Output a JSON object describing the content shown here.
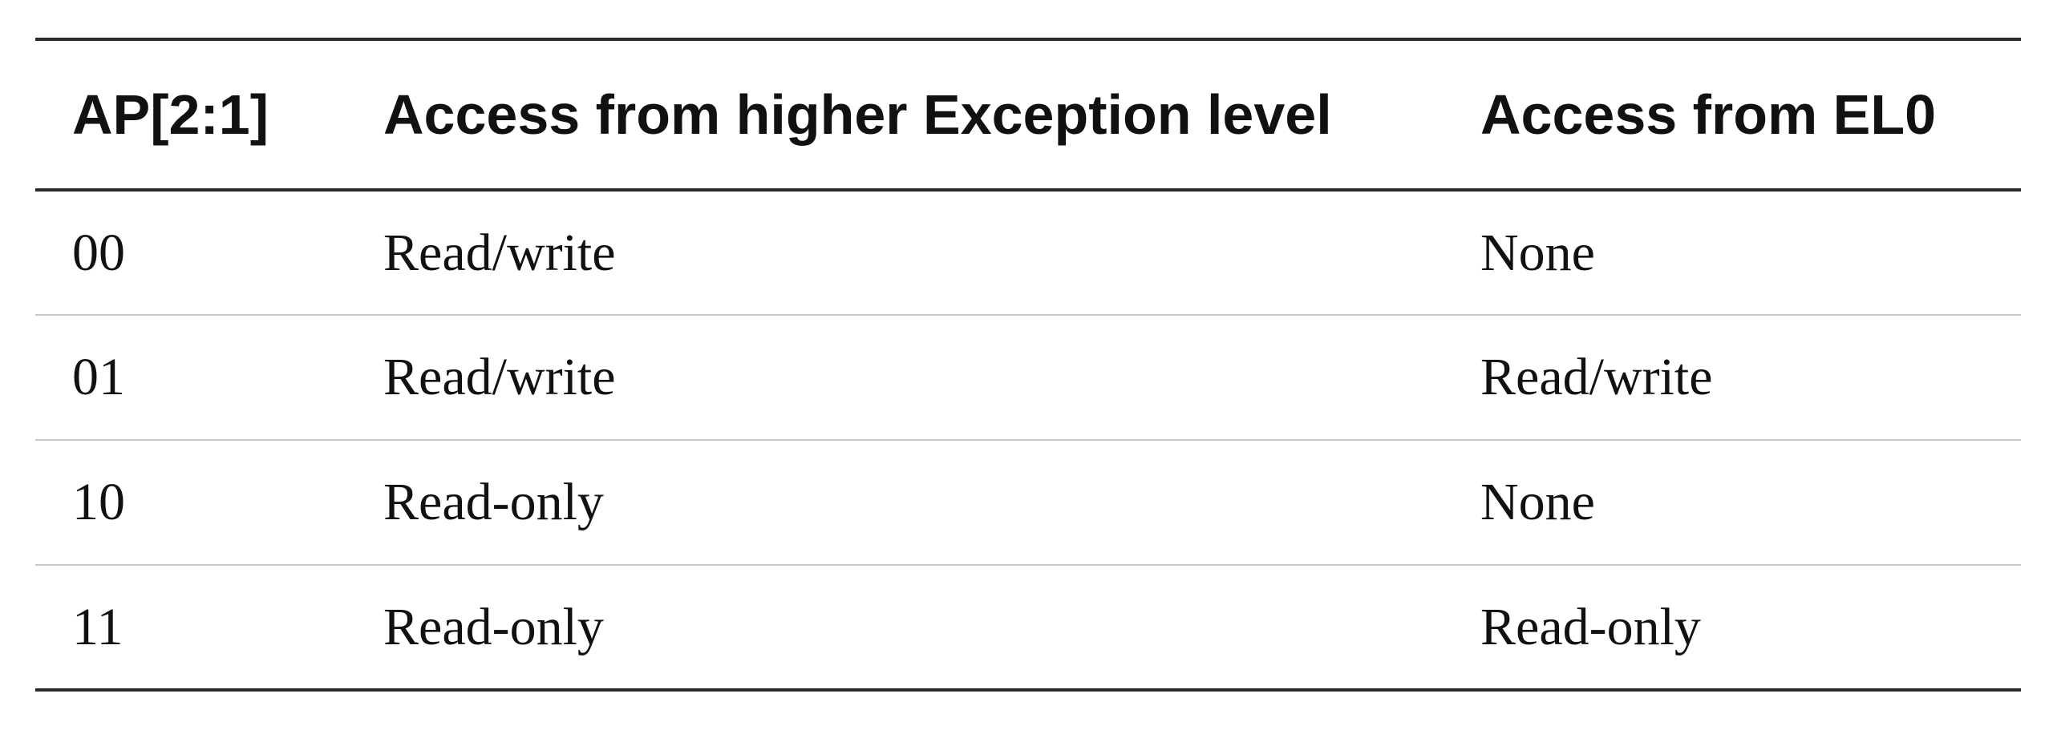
{
  "table": {
    "headers": [
      "AP[2:1]",
      "Access from higher Exception level",
      "Access from EL0"
    ],
    "rows": [
      [
        "00",
        "Read/write",
        "None"
      ],
      [
        "01",
        "Read/write",
        "Read/write"
      ],
      [
        "10",
        "Read-only",
        "None"
      ],
      [
        "11",
        "Read-only",
        "Read-only"
      ]
    ]
  }
}
